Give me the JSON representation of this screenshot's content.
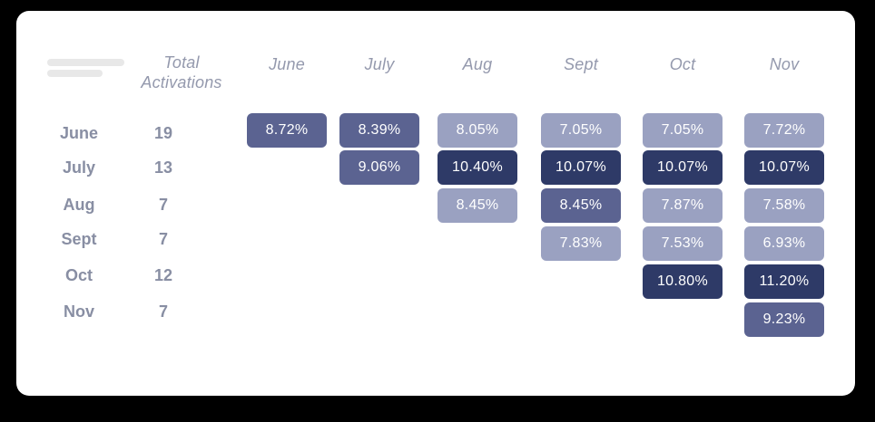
{
  "colors": {
    "background": "#000000",
    "card_background": "#ffffff",
    "cell_light": "#9aa1c1",
    "cell_medium": "#5b6391",
    "cell_dark": "#2e3a67",
    "cell_text": "#ffffff",
    "column_header_text": "#9499ad",
    "row_label_text": "#888ea3",
    "skeleton_bar": "#e8e8e8"
  },
  "chart_data": {
    "type": "heatmap",
    "row_header": "Total Activations",
    "columns": [
      "June",
      "July",
      "Aug",
      "Sept",
      "Oct",
      "Nov"
    ],
    "legend_position": "none",
    "palette_levels": [
      "light",
      "medium",
      "dark"
    ],
    "rows": [
      {
        "label": "June",
        "total_activations": 19,
        "cells": {
          "june": {
            "value": "8.72%",
            "pct": 8.72,
            "shade": "medium"
          },
          "july": {
            "value": "8.39%",
            "pct": 8.39,
            "shade": "medium"
          },
          "aug": {
            "value": "8.05%",
            "pct": 8.05,
            "shade": "light"
          },
          "sept": {
            "value": "7.05%",
            "pct": 7.05,
            "shade": "light"
          },
          "oct": {
            "value": "7.05%",
            "pct": 7.05,
            "shade": "light"
          },
          "nov": {
            "value": "7.72%",
            "pct": 7.72,
            "shade": "light"
          }
        }
      },
      {
        "label": "July",
        "total_activations": 13,
        "cells": {
          "july": {
            "value": "9.06%",
            "pct": 9.06,
            "shade": "medium"
          },
          "aug": {
            "value": "10.40%",
            "pct": 10.4,
            "shade": "dark"
          },
          "sept": {
            "value": "10.07%",
            "pct": 10.07,
            "shade": "dark"
          },
          "oct": {
            "value": "10.07%",
            "pct": 10.07,
            "shade": "dark"
          },
          "nov": {
            "value": "10.07%",
            "pct": 10.07,
            "shade": "dark"
          }
        }
      },
      {
        "label": "Aug",
        "total_activations": 7,
        "cells": {
          "aug": {
            "value": "8.45%",
            "pct": 8.45,
            "shade": "light"
          },
          "sept": {
            "value": "8.45%",
            "pct": 8.45,
            "shade": "medium"
          },
          "oct": {
            "value": "7.87%",
            "pct": 7.87,
            "shade": "light"
          },
          "nov": {
            "value": "7.58%",
            "pct": 7.58,
            "shade": "light"
          }
        }
      },
      {
        "label": "Sept",
        "total_activations": 7,
        "cells": {
          "sept": {
            "value": "7.83%",
            "pct": 7.83,
            "shade": "light"
          },
          "oct": {
            "value": "7.53%",
            "pct": 7.53,
            "shade": "light"
          },
          "nov": {
            "value": "6.93%",
            "pct": 6.93,
            "shade": "light"
          }
        }
      },
      {
        "label": "Oct",
        "total_activations": 12,
        "cells": {
          "oct": {
            "value": "10.80%",
            "pct": 10.8,
            "shade": "dark"
          },
          "nov": {
            "value": "11.20%",
            "pct": 11.2,
            "shade": "dark"
          }
        }
      },
      {
        "label": "Nov",
        "total_activations": 7,
        "cells": {
          "nov": {
            "value": "9.23%",
            "pct": 9.23,
            "shade": "medium"
          }
        }
      }
    ]
  }
}
